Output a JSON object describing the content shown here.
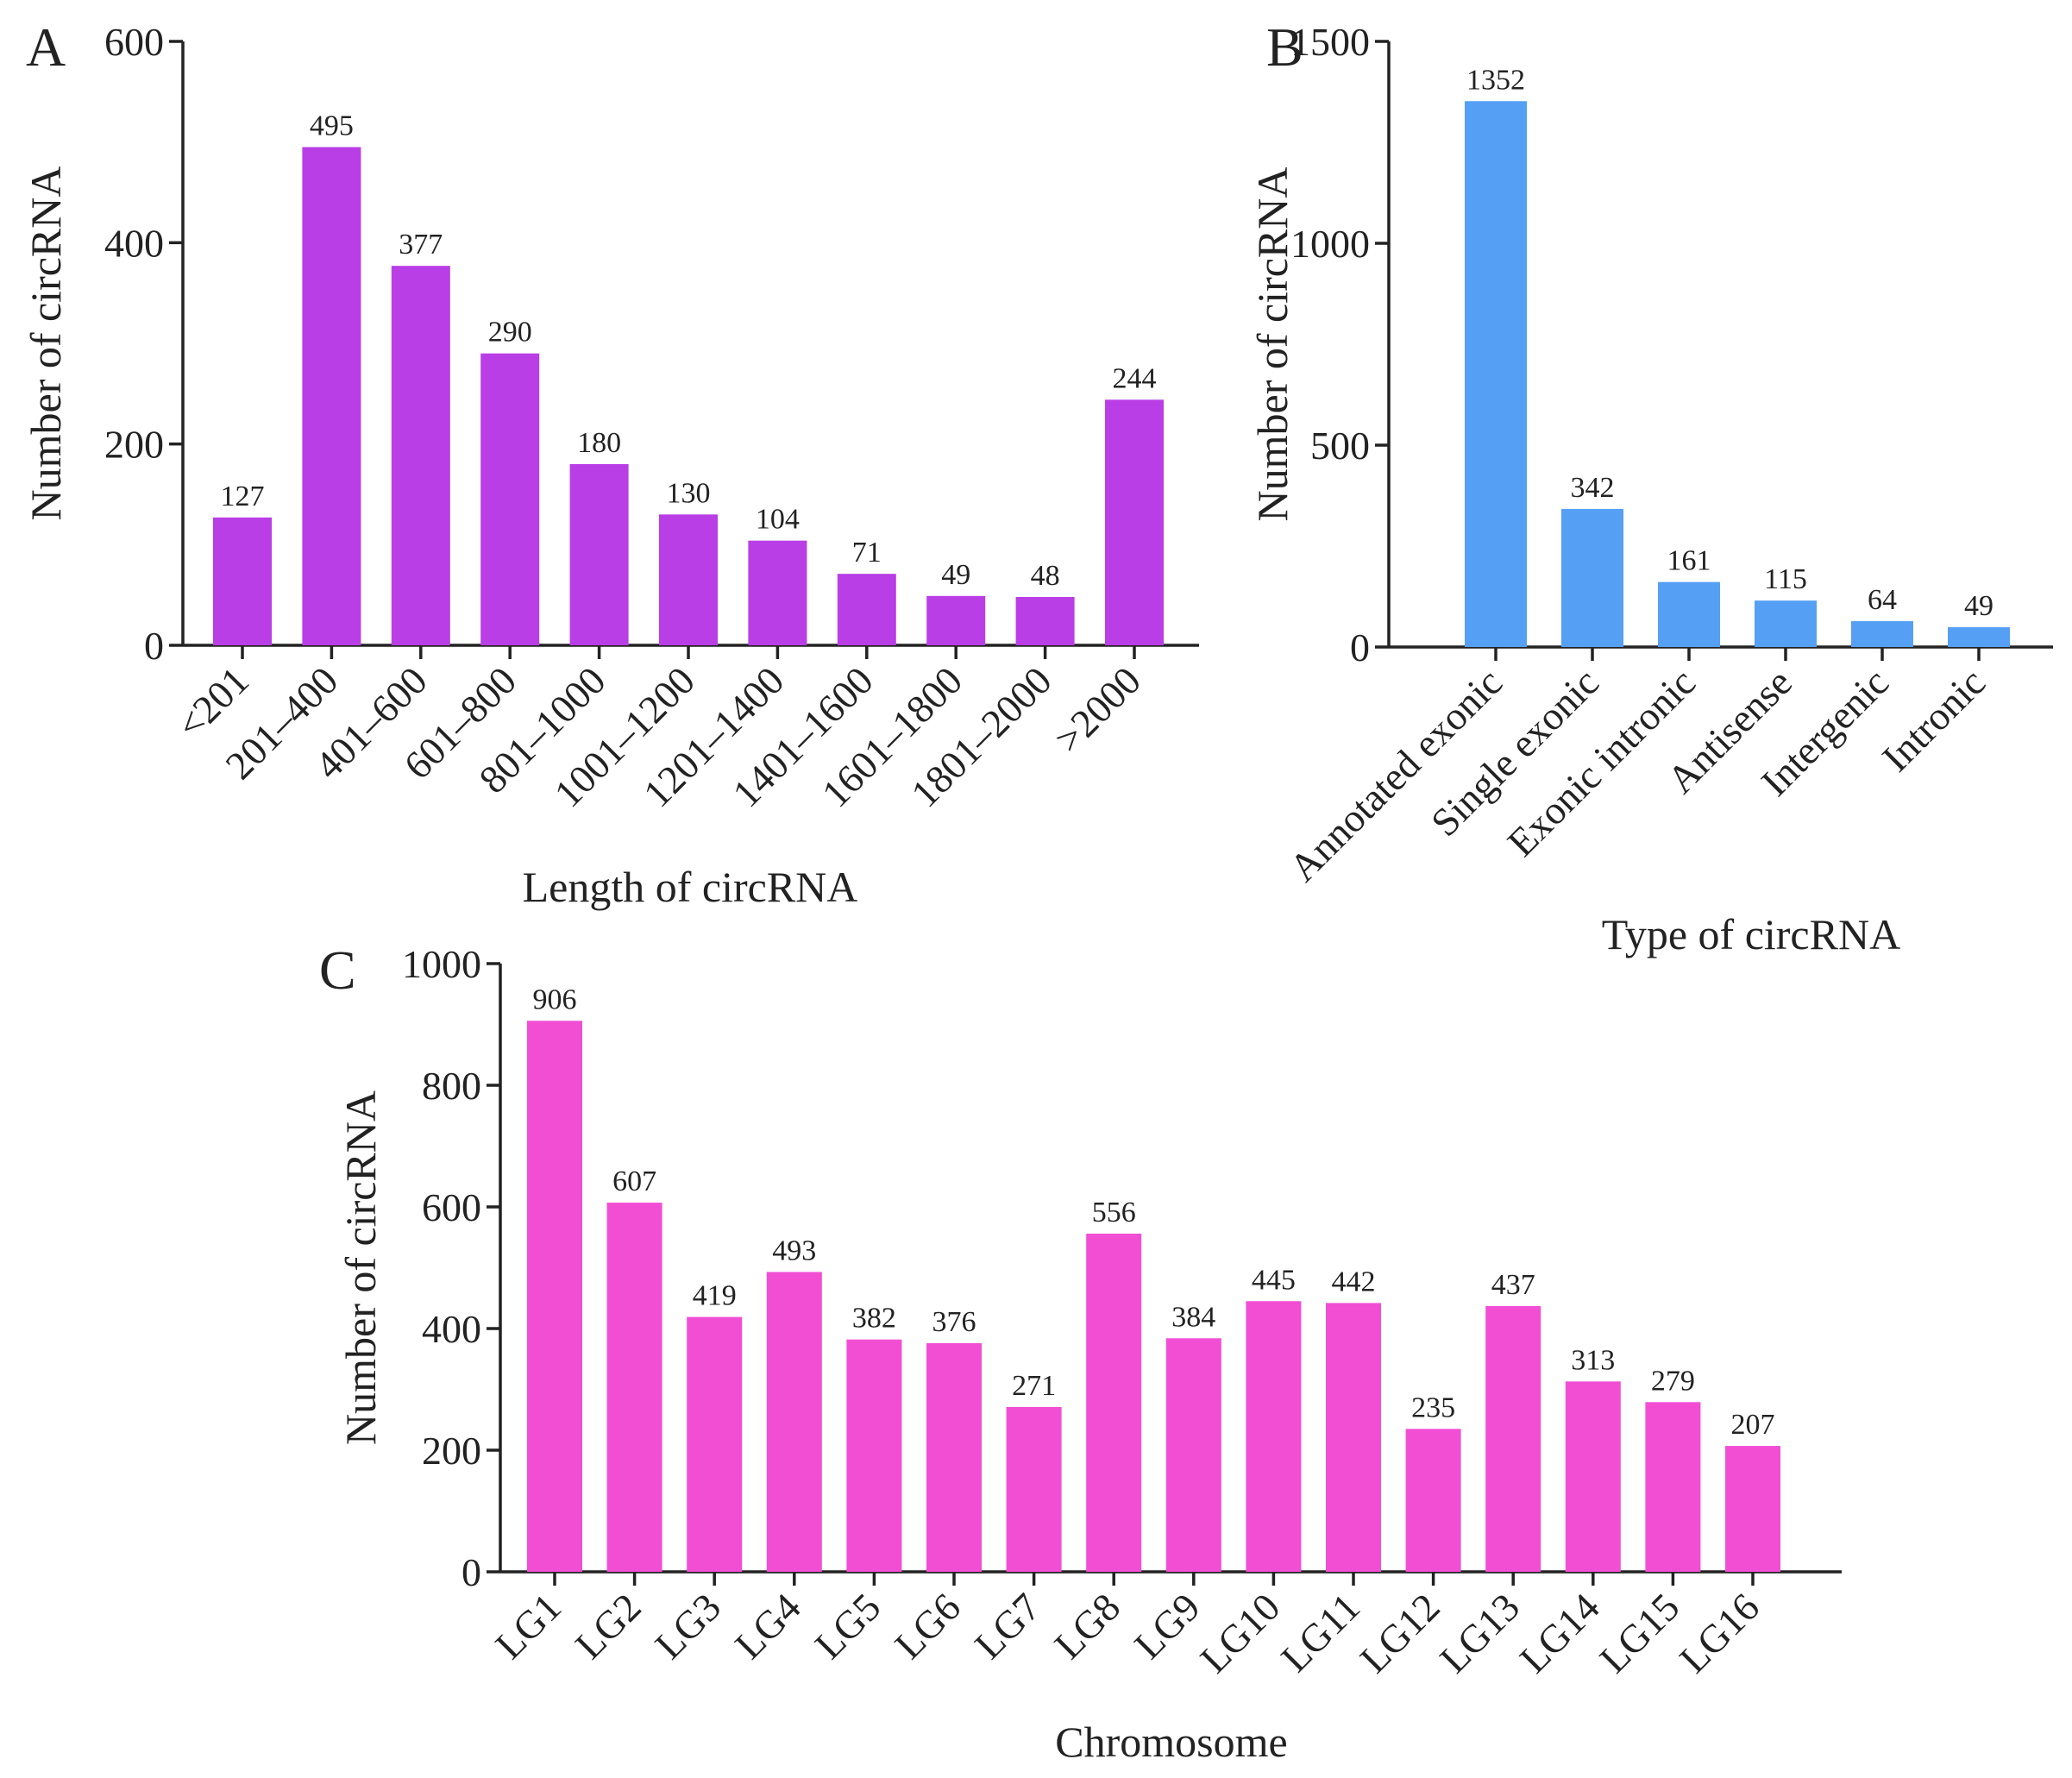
{
  "chart_data": [
    {
      "panel": "A",
      "type": "bar",
      "categories": [
        "<201",
        "201–400",
        "401–600",
        "601–800",
        "801–1000",
        "1001–1200",
        "1201–1400",
        "1401–1600",
        "1601–1800",
        "1801–2000",
        ">2000"
      ],
      "values": [
        127,
        495,
        377,
        290,
        180,
        130,
        104,
        71,
        49,
        48,
        244
      ],
      "data_labels": [
        "127",
        "495",
        "377",
        "290",
        "180",
        "130",
        "104",
        "71",
        "49",
        "48",
        "244"
      ],
      "title": "",
      "xlabel": "Length of circRNA",
      "ylabel": "Number of circRNA",
      "ylim": [
        0,
        600
      ],
      "yticks": [
        0,
        200,
        400,
        600
      ],
      "ytick_labels": [
        "0",
        "200",
        "400",
        "600"
      ],
      "color": "#b93ee6",
      "grid": false
    },
    {
      "panel": "B",
      "type": "bar",
      "categories": [
        "Annotated exonic",
        "Single exonic",
        "Exonic intronic",
        "Antisense",
        "Intergenic",
        "Intronic"
      ],
      "values": [
        1352,
        342,
        161,
        115,
        64,
        49
      ],
      "data_labels": [
        "1352",
        "342",
        "161",
        "115",
        "64",
        "49"
      ],
      "title": "",
      "xlabel": "Type of circRNA",
      "ylabel": "Number of circRNA",
      "ylim": [
        0,
        1500
      ],
      "yticks": [
        0,
        500,
        1000,
        1500
      ],
      "ytick_labels": [
        "0",
        "500",
        "1000",
        "1500"
      ],
      "color": "#559ff5",
      "grid": false
    },
    {
      "panel": "C",
      "type": "bar",
      "categories": [
        "LG1",
        "LG2",
        "LG3",
        "LG4",
        "LG5",
        "LG6",
        "LG7",
        "LG8",
        "LG9",
        "LG10",
        "LG11",
        "LG12",
        "LG13",
        "LG14",
        "LG15",
        "LG16"
      ],
      "values": [
        906,
        607,
        419,
        493,
        382,
        376,
        271,
        556,
        384,
        445,
        442,
        235,
        437,
        313,
        279,
        207
      ],
      "data_labels": [
        "906",
        "607",
        "419",
        "493",
        "382",
        "376",
        "271",
        "556",
        "384",
        "445",
        "442",
        "235",
        "437",
        "313",
        "279",
        "207"
      ],
      "title": "",
      "xlabel": "Chromosome",
      "ylabel": "Number of circRNA",
      "ylim": [
        0,
        1000
      ],
      "yticks": [
        0,
        200,
        400,
        600,
        800,
        1000
      ],
      "ytick_labels": [
        "0",
        "200",
        "400",
        "600",
        "800",
        "1000"
      ],
      "color": "#f24ed4",
      "grid": false
    }
  ]
}
